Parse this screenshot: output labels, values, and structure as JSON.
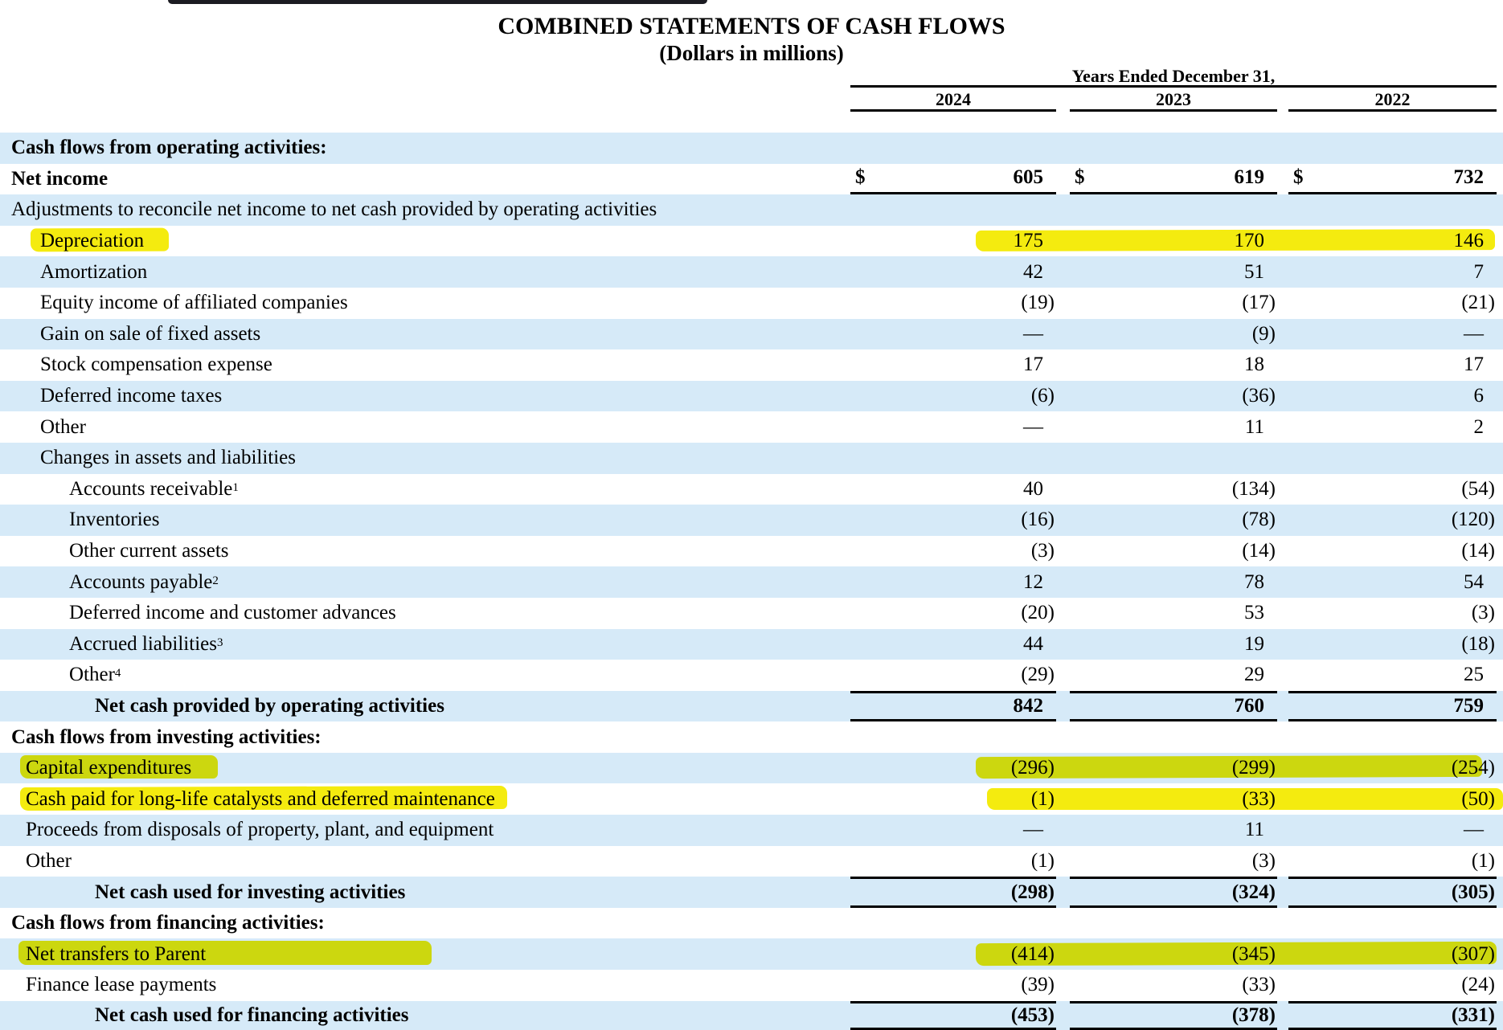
{
  "page": {
    "title": "COMBINED STATEMENTS OF CASH FLOWS",
    "subtitle": "(Dollars in millions)",
    "period_header": "Years Ended December 31,",
    "years": [
      "2024",
      "2023",
      "2022"
    ],
    "currency_symbol": "$"
  },
  "colors": {
    "row_shading_blue": "#d6eaf8",
    "highlighter_yellow": "#f4eb0f",
    "highlighter_over_blue_green": "#cdd926",
    "rule_black": "#000000",
    "top_bar_dark": "#1b1b22"
  },
  "rows": [
    {
      "label": "Cash flows from operating activities:",
      "level": 0,
      "bold": true,
      "shaded": true,
      "values": null,
      "rule": "none"
    },
    {
      "label": "Net income",
      "level": 0,
      "bold": true,
      "shaded": false,
      "dollar": true,
      "values": [
        "605",
        "619",
        "732"
      ],
      "rule": "bottom"
    },
    {
      "label": "Adjustments to reconcile net income to net cash provided by operating activities",
      "level": 0,
      "bold": false,
      "shaded": true,
      "values": null,
      "rule": "none"
    },
    {
      "label": "Depreciation",
      "level": 2,
      "bold": false,
      "shaded": false,
      "values": [
        "175",
        "170",
        "146"
      ],
      "rule": "none",
      "highlighted": true
    },
    {
      "label": "Amortization",
      "level": 2,
      "bold": false,
      "shaded": true,
      "values": [
        "42",
        "51",
        "7"
      ],
      "rule": "none"
    },
    {
      "label": "Equity income of affiliated companies",
      "level": 2,
      "bold": false,
      "shaded": false,
      "values": [
        "(19)",
        "(17)",
        "(21)"
      ],
      "rule": "none"
    },
    {
      "label": "Gain on sale of fixed assets",
      "level": 2,
      "bold": false,
      "shaded": true,
      "values": [
        "—",
        "(9)",
        "—"
      ],
      "rule": "none"
    },
    {
      "label": "Stock compensation expense",
      "level": 2,
      "bold": false,
      "shaded": false,
      "values": [
        "17",
        "18",
        "17"
      ],
      "rule": "none"
    },
    {
      "label": "Deferred income taxes",
      "level": 2,
      "bold": false,
      "shaded": true,
      "values": [
        "(6)",
        "(36)",
        "6"
      ],
      "rule": "none"
    },
    {
      "label": "Other",
      "level": 2,
      "bold": false,
      "shaded": false,
      "values": [
        "—",
        "11",
        "2"
      ],
      "rule": "none"
    },
    {
      "label": "Changes in assets and liabilities",
      "level": 2,
      "bold": false,
      "shaded": true,
      "values": null,
      "rule": "none"
    },
    {
      "label": "Accounts receivable",
      "sup": "1",
      "level": 3,
      "bold": false,
      "shaded": false,
      "values": [
        "40",
        "(134)",
        "(54)"
      ],
      "rule": "none"
    },
    {
      "label": "Inventories",
      "level": 3,
      "bold": false,
      "shaded": true,
      "values": [
        "(16)",
        "(78)",
        "(120)"
      ],
      "rule": "none"
    },
    {
      "label": "Other current assets",
      "level": 3,
      "bold": false,
      "shaded": false,
      "values": [
        "(3)",
        "(14)",
        "(14)"
      ],
      "rule": "none"
    },
    {
      "label": "Accounts payable",
      "sup": "2",
      "level": 3,
      "bold": false,
      "shaded": true,
      "values": [
        "12",
        "78",
        "54"
      ],
      "rule": "none"
    },
    {
      "label": "Deferred income and customer advances",
      "level": 3,
      "bold": false,
      "shaded": false,
      "values": [
        "(20)",
        "53",
        "(3)"
      ],
      "rule": "none"
    },
    {
      "label": "Accrued liabilities",
      "sup": "3",
      "level": 3,
      "bold": false,
      "shaded": true,
      "values": [
        "44",
        "19",
        "(18)"
      ],
      "rule": "none"
    },
    {
      "label": "Other",
      "sup": "4",
      "level": 3,
      "bold": false,
      "shaded": false,
      "values": [
        "(29)",
        "29",
        "25"
      ],
      "rule": "none"
    },
    {
      "label": "Net cash provided by operating activities",
      "level": 4,
      "bold": true,
      "shaded": true,
      "values": [
        "842",
        "760",
        "759"
      ],
      "rule": "both"
    },
    {
      "label": "Cash flows from investing activities:",
      "level": 0,
      "bold": true,
      "shaded": false,
      "values": null,
      "rule": "none"
    },
    {
      "label": "Capital expenditures",
      "level": 1,
      "bold": false,
      "shaded": true,
      "values": [
        "(296)",
        "(299)",
        "(254)"
      ],
      "rule": "none",
      "highlighted": true
    },
    {
      "label": "Cash paid for long-life catalysts and deferred maintenance",
      "level": 1,
      "bold": false,
      "shaded": false,
      "values": [
        "(1)",
        "(33)",
        "(50)"
      ],
      "rule": "none",
      "highlighted": true
    },
    {
      "label": "Proceeds from disposals of property, plant, and equipment",
      "level": 1,
      "bold": false,
      "shaded": true,
      "values": [
        "—",
        "11",
        "—"
      ],
      "rule": "none"
    },
    {
      "label": "Other",
      "level": 1,
      "bold": false,
      "shaded": false,
      "values": [
        "(1)",
        "(3)",
        "(1)"
      ],
      "rule": "none"
    },
    {
      "label": "Net cash used for investing activities",
      "level": 4,
      "bold": true,
      "shaded": true,
      "values": [
        "(298)",
        "(324)",
        "(305)"
      ],
      "rule": "both"
    },
    {
      "label": "Cash flows from financing activities:",
      "level": 0,
      "bold": true,
      "shaded": false,
      "values": null,
      "rule": "none"
    },
    {
      "label": "Net transfers to Parent",
      "level": 1,
      "bold": false,
      "shaded": true,
      "values": [
        "(414)",
        "(345)",
        "(307)"
      ],
      "rule": "none",
      "highlighted": true
    },
    {
      "label": "Finance lease payments",
      "level": 1,
      "bold": false,
      "shaded": false,
      "values": [
        "(39)",
        "(33)",
        "(24)"
      ],
      "rule": "none"
    },
    {
      "label": "Net cash used for financing activities",
      "level": 4,
      "bold": true,
      "shaded": true,
      "values": [
        "(453)",
        "(378)",
        "(331)"
      ],
      "rule": "both"
    }
  ]
}
